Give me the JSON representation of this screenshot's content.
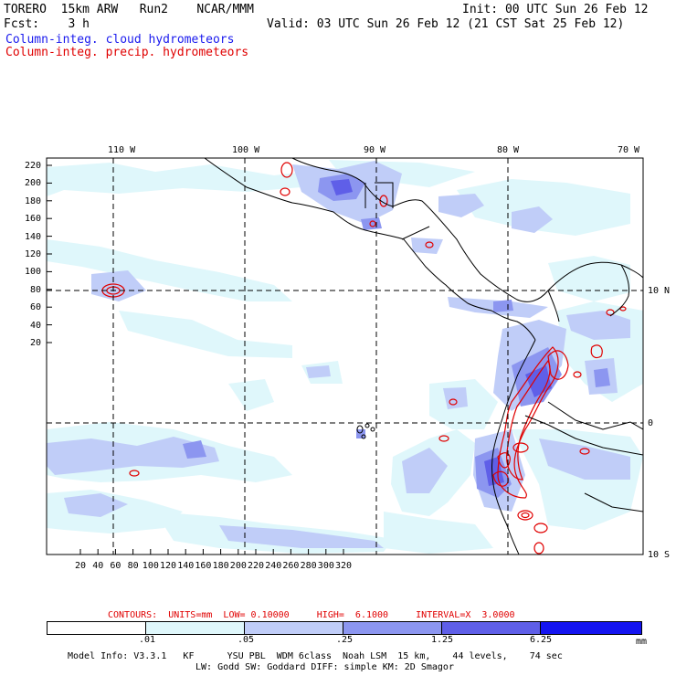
{
  "header": {
    "model": "TORERO  15km ARW   Run2    NCAR/MMM",
    "init": "Init: 00 UTC Sun 26 Feb 12",
    "fcst_label": "Fcst:    3 h",
    "valid": "Valid: 03 UTC Sun 26 Feb 12 (21 CST Sat 25 Feb 12)",
    "field_cloud": "Column-integ. cloud hydrometeors",
    "field_precip": "Column-integ. precip. hydrometeors"
  },
  "colors": {
    "cloud_label": "#1a1aee",
    "precip_label": "#e00000",
    "contour": "#e00000",
    "shade_1": "#dff7fb",
    "shade_2": "#c0cdf8",
    "shade_3": "#8c96f0",
    "shade_4": "#5f5fe8",
    "shade_5": "#3a3ae6",
    "shade_6": "#1414f0"
  },
  "axes": {
    "top_lon_labels": [
      "110 W",
      "100 W",
      "90 W",
      "80 W",
      "70 W"
    ],
    "right_lat_labels": [
      "10 N",
      "0",
      "10 S"
    ],
    "left_grid_labels": [
      "220",
      "200",
      "180",
      "160",
      "140",
      "120",
      "100",
      "80",
      "60",
      "40",
      "20"
    ],
    "bottom_grid_labels": [
      "20",
      "40",
      "60",
      "80",
      "100",
      "120",
      "140",
      "160",
      "180",
      "200",
      "220",
      "240",
      "260",
      "280",
      "300",
      "320"
    ]
  },
  "contour_info": {
    "text": "CONTOURS:  UNITS=mm  LOW= 0.10000     HIGH=  6.1000     INTERVAL=X  3.0000"
  },
  "legend": {
    "thresholds": [
      ".01",
      ".05",
      ".25",
      "1.25",
      "6.25"
    ],
    "units": "mm"
  },
  "footer": {
    "line1": "Model Info: V3.3.1   KF      YSU PBL  WDM 6class  Noah LSM  15 km,    44 levels,    74 sec",
    "line2": "LW: Godd SW: Goddard DIFF: simple KM: 2D Smagor"
  }
}
